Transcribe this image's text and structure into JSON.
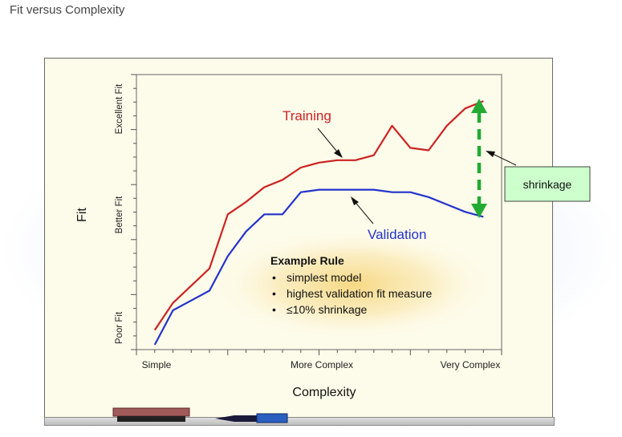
{
  "page_title": "Fit versus Complexity",
  "colors": {
    "training": "#cc2222",
    "validation": "#2233cc",
    "shrinkage_arrow": "#22aa33",
    "callout_fill": "#ccffcc",
    "board": "#fdfbe9"
  },
  "chart_data": {
    "type": "line",
    "xlabel": "Complexity",
    "ylabel": "Fit",
    "xlim": [
      0,
      100
    ],
    "ylim": [
      0,
      100
    ],
    "x_ticks": [
      {
        "x": 5,
        "label": "Simple"
      },
      {
        "x": 50,
        "label": "More Complex"
      },
      {
        "x": 92,
        "label": "Very Complex"
      }
    ],
    "y_bands": [
      {
        "y": 8,
        "label": "Poor Fit"
      },
      {
        "y": 50,
        "label": "Better Fit"
      },
      {
        "y": 92,
        "label": "Excellent Fit"
      }
    ],
    "series": [
      {
        "name": "Training",
        "x": [
          5,
          10,
          20,
          25,
          30,
          35,
          40,
          45,
          50,
          55,
          60,
          65,
          70,
          75,
          80,
          85,
          90,
          95
        ],
        "y": [
          6,
          17,
          31,
          53,
          58,
          64,
          67,
          72,
          74,
          75,
          75,
          77,
          89,
          80,
          79,
          89,
          96,
          99
        ]
      },
      {
        "name": "Validation",
        "x": [
          5,
          10,
          20,
          25,
          30,
          35,
          40,
          45,
          50,
          55,
          60,
          65,
          70,
          75,
          80,
          85,
          90,
          95
        ],
        "y": [
          0,
          14,
          22,
          36,
          46,
          53,
          53,
          62,
          63,
          63,
          63,
          63,
          62,
          62,
          60,
          57,
          54,
          52
        ]
      }
    ],
    "annotations": {
      "example_rule": {
        "title": "Example Rule",
        "items": [
          "simplest model",
          "highest validation fit measure",
          "≤10% shrinkage"
        ]
      },
      "shrinkage": "shrinkage"
    }
  }
}
